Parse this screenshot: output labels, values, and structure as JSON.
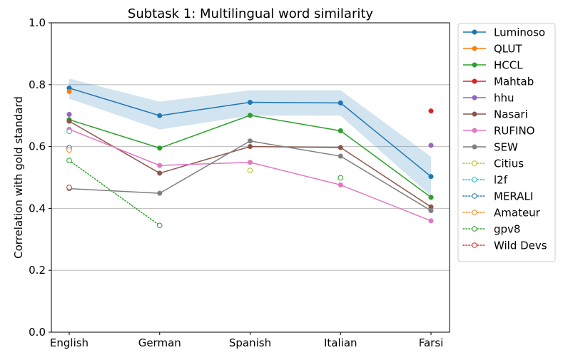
{
  "chart_data": {
    "type": "line",
    "title": "Subtask 1: Multilingual word similarity",
    "xlabel": "",
    "ylabel": "Correlation with gold standard",
    "categories": [
      "English",
      "German",
      "Spanish",
      "Italian",
      "Farsi"
    ],
    "ylim": [
      0.0,
      1.0
    ],
    "yticks": [
      "0.0",
      "0.2",
      "0.4",
      "0.6",
      "0.8",
      "1.0"
    ],
    "grid": "horizontal at y ticks",
    "legend_position": "outside right",
    "band": {
      "series": "Luminoso",
      "color": "#1f77b4",
      "lower": [
        0.755,
        0.655,
        0.7,
        0.7,
        0.44
      ],
      "upper": [
        0.82,
        0.745,
        0.782,
        0.782,
        0.567
      ]
    },
    "series": [
      {
        "name": "Luminoso",
        "color": "#1f77b4",
        "style": "solid",
        "values": [
          0.789,
          0.7,
          0.743,
          0.741,
          0.503
        ]
      },
      {
        "name": "QLUT",
        "color": "#ff7f0e",
        "style": "solid",
        "values": [
          0.778,
          null,
          null,
          null,
          null
        ]
      },
      {
        "name": "HCCL",
        "color": "#2ca02c",
        "style": "solid",
        "values": [
          0.687,
          0.595,
          0.701,
          0.651,
          0.436
        ]
      },
      {
        "name": "Mahtab",
        "color": "#d62728",
        "style": "solid",
        "values": [
          null,
          null,
          null,
          null,
          0.715
        ]
      },
      {
        "name": "hhu",
        "color": "#9467bd",
        "style": "solid",
        "values": [
          0.704,
          null,
          null,
          null,
          0.604
        ]
      },
      {
        "name": "Nasari",
        "color": "#8c564b",
        "style": "solid",
        "values": [
          0.682,
          0.514,
          0.6,
          0.597,
          0.405
        ]
      },
      {
        "name": "RUFINO",
        "color": "#e377c2",
        "style": "solid",
        "values": [
          0.656,
          0.539,
          0.549,
          0.476,
          0.36
        ]
      },
      {
        "name": "SEW",
        "color": "#7f7f7f",
        "style": "solid",
        "values": [
          0.464,
          0.449,
          0.618,
          0.569,
          0.393
        ]
      },
      {
        "name": "Citius",
        "color": "#bcbd22",
        "style": "dotted",
        "values": [
          null,
          null,
          0.523,
          null,
          null
        ]
      },
      {
        "name": "l2f",
        "color": "#17becf",
        "style": "dotted",
        "values": [
          0.649,
          null,
          null,
          null,
          null
        ]
      },
      {
        "name": "MERALI",
        "color": "#1f77b4",
        "style": "dotted",
        "values": [
          0.596,
          null,
          null,
          null,
          null
        ]
      },
      {
        "name": "Amateur",
        "color": "#ff7f0e",
        "style": "dotted",
        "values": [
          0.589,
          null,
          null,
          null,
          null
        ]
      },
      {
        "name": "gpv8",
        "color": "#2ca02c",
        "style": "dotted",
        "values": [
          0.555,
          0.345,
          null,
          0.499,
          null
        ]
      },
      {
        "name": "Wild Devs",
        "color": "#d62728",
        "style": "dotted",
        "values": [
          0.468,
          null,
          null,
          null,
          null
        ]
      }
    ]
  }
}
